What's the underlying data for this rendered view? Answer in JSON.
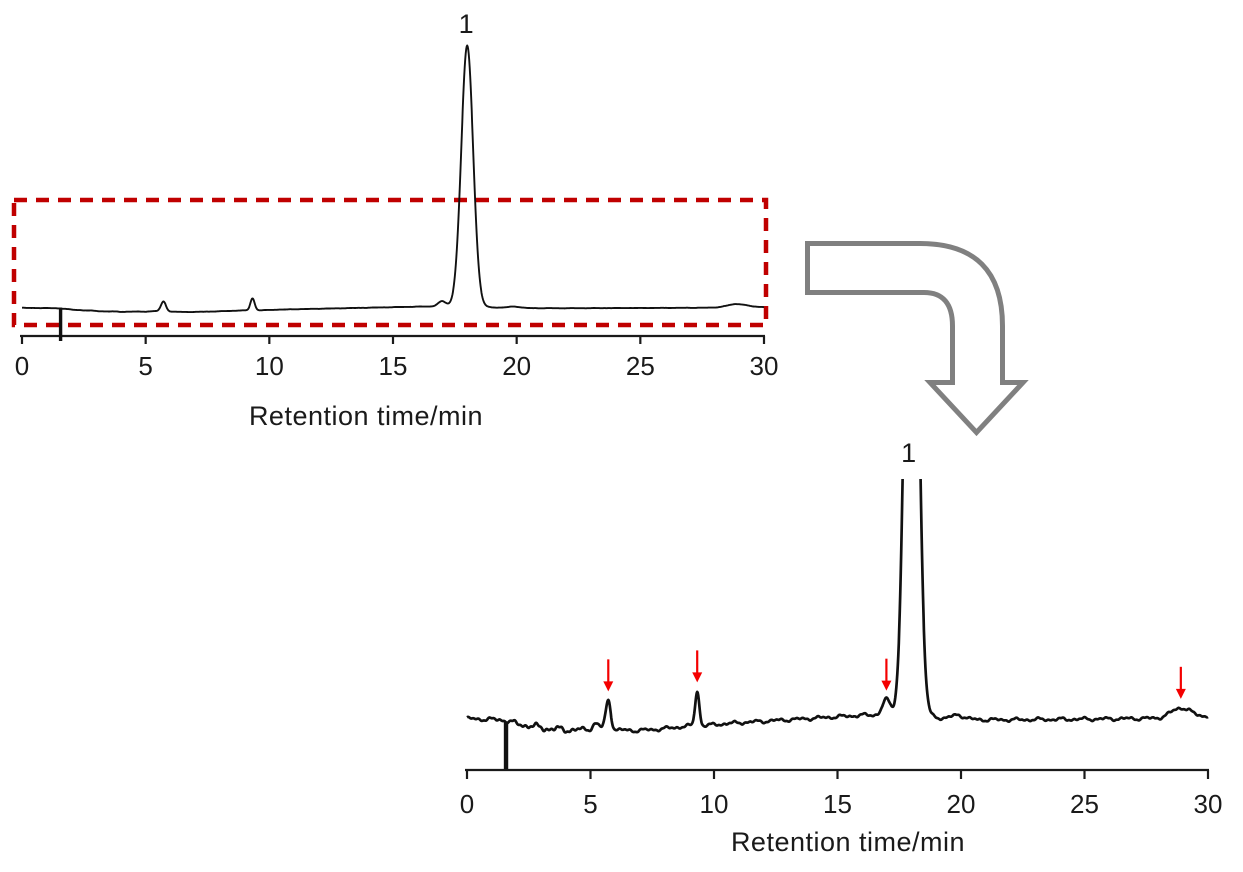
{
  "figure": {
    "description_labels": {
      "peak_label": "1"
    },
    "colors": {
      "trace": "#111111",
      "axis": "#1a1a1a",
      "highlight_box_red": "#c00000",
      "marker_arrow_red": "#f40000",
      "bent_arrow_gray": "#808080",
      "background": "#ffffff"
    }
  },
  "chart_data": [
    {
      "id": "original",
      "type": "line",
      "title": "",
      "xlabel": "Retention time/min",
      "ylabel": "",
      "xlim": [
        0,
        30
      ],
      "xticks": [
        "0",
        "5",
        "10",
        "15",
        "20",
        "25",
        "30"
      ],
      "xtick_values": [
        0,
        5,
        10,
        15,
        20,
        25,
        30
      ],
      "grid": false,
      "peak_label": {
        "text": "1",
        "t": 18.0
      },
      "injection_spike_t": 1.56,
      "peaks": [
        {
          "t": 5.72,
          "h": 3.8,
          "w": 0.1
        },
        {
          "t": 9.32,
          "h": 4.6,
          "w": 0.085
        },
        {
          "t": 16.98,
          "h": 2.0,
          "w": 0.16
        },
        {
          "t": 18.0,
          "h": 100.0,
          "w": 0.24,
          "label": "1"
        },
        {
          "t": 19.9,
          "h": 0.55,
          "w": 0.25
        },
        {
          "t": 28.9,
          "h": 1.3,
          "w": 0.38
        }
      ],
      "baseline_drift": [
        [
          0,
          0.45
        ],
        [
          0.8,
          0.35
        ],
        [
          1.4,
          0.3
        ],
        [
          1.7,
          0.1
        ],
        [
          2.0,
          -0.25
        ],
        [
          2.6,
          -0.55
        ],
        [
          3.2,
          -0.85
        ],
        [
          4.0,
          -1.05
        ],
        [
          5.0,
          -1.0
        ],
        [
          5.4,
          -0.8
        ],
        [
          6.1,
          -1.05
        ],
        [
          6.8,
          -1.15
        ],
        [
          7.6,
          -1.0
        ],
        [
          8.4,
          -0.75
        ],
        [
          8.9,
          -0.55
        ],
        [
          9.6,
          -0.5
        ],
        [
          10.2,
          -0.3
        ],
        [
          11,
          -0.1
        ],
        [
          12,
          0.1
        ],
        [
          13,
          0.3
        ],
        [
          14,
          0.5
        ],
        [
          15,
          0.7
        ],
        [
          16,
          0.9
        ],
        [
          17.5,
          1.0
        ],
        [
          18.6,
          0.8
        ],
        [
          19.3,
          0.5
        ],
        [
          20,
          0.35
        ],
        [
          21,
          0.3
        ],
        [
          22,
          0.3
        ],
        [
          24,
          0.35
        ],
        [
          26,
          0.42
        ],
        [
          28,
          0.5
        ],
        [
          29,
          0.6
        ],
        [
          30,
          0.8
        ]
      ],
      "magnified_region_box": true,
      "markers_t": []
    },
    {
      "id": "magnified",
      "type": "line",
      "title": "",
      "xlabel": "Retention time/min",
      "ylabel": "",
      "xlim": [
        0,
        30
      ],
      "xticks": [
        "0",
        "5",
        "10",
        "15",
        "20",
        "25",
        "30"
      ],
      "xtick_values": [
        0,
        5,
        10,
        15,
        20,
        25,
        30
      ],
      "grid": false,
      "peak_label": {
        "text": "1",
        "t": 18.0
      },
      "injection_spike_t": 1.58,
      "main_peak_clipped": true,
      "peaks": [
        {
          "t": 5.2,
          "h": 0.7,
          "w": 0.12
        },
        {
          "t": 5.72,
          "h": 3.8,
          "w": 0.1
        },
        {
          "t": 9.32,
          "h": 4.6,
          "w": 0.085
        },
        {
          "t": 16.98,
          "h": 2.0,
          "w": 0.16
        },
        {
          "t": 18.0,
          "h": 100.0,
          "w": 0.24,
          "label": "1"
        },
        {
          "t": 19.9,
          "h": 0.55,
          "w": 0.25
        },
        {
          "t": 28.9,
          "h": 1.3,
          "w": 0.38
        }
      ],
      "baseline_drift": [
        [
          0,
          0.45
        ],
        [
          0.8,
          0.35
        ],
        [
          1.4,
          0.3
        ],
        [
          1.7,
          0.1
        ],
        [
          2.0,
          -0.25
        ],
        [
          2.6,
          -0.55
        ],
        [
          3.2,
          -0.85
        ],
        [
          4.0,
          -1.05
        ],
        [
          5.0,
          -1.0
        ],
        [
          5.4,
          -0.8
        ],
        [
          6.1,
          -1.05
        ],
        [
          6.8,
          -1.15
        ],
        [
          7.6,
          -1.0
        ],
        [
          8.4,
          -0.75
        ],
        [
          8.9,
          -0.55
        ],
        [
          9.6,
          -0.5
        ],
        [
          10.2,
          -0.3
        ],
        [
          11,
          -0.1
        ],
        [
          12,
          0.1
        ],
        [
          13,
          0.3
        ],
        [
          14,
          0.5
        ],
        [
          15,
          0.7
        ],
        [
          16,
          0.9
        ],
        [
          17.5,
          1.0
        ],
        [
          18.6,
          0.8
        ],
        [
          19.3,
          0.5
        ],
        [
          20,
          0.35
        ],
        [
          21,
          0.3
        ],
        [
          22,
          0.3
        ],
        [
          24,
          0.35
        ],
        [
          26,
          0.42
        ],
        [
          28,
          0.5
        ],
        [
          29,
          0.6
        ],
        [
          30,
          0.8
        ]
      ],
      "magnified_region_box": false,
      "markers_t": [
        5.72,
        9.32,
        16.98,
        28.9
      ]
    }
  ]
}
